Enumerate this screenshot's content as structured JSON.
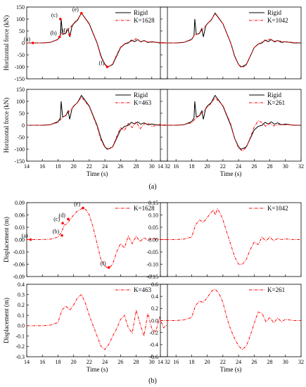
{
  "captions": [
    "(a)",
    "(b)"
  ],
  "chart_data": [
    {
      "type": "line",
      "panel": "a-top-left",
      "xlabel": "",
      "ylabel": "Horizontal force (kN)",
      "xlim": [
        14,
        32
      ],
      "ylim": [
        -150,
        150
      ],
      "xticks": [],
      "yticks": [
        -150,
        -100,
        -50,
        0,
        50,
        100,
        150
      ],
      "legend": "top-right",
      "series": [
        {
          "name": "Rigid",
          "style": "solid",
          "color": "#000000",
          "x": [
            14,
            16,
            17,
            18,
            18.3,
            18.4,
            18.6,
            19,
            19.3,
            19.5,
            19.8,
            20,
            20.5,
            21,
            22,
            23,
            23.5,
            24,
            24.3,
            24.6,
            25,
            25.5,
            26,
            26.5,
            27,
            27.4,
            27.8,
            28.2,
            28.6,
            29,
            29.5,
            30,
            31,
            32
          ],
          "y": [
            0,
            0,
            2,
            15,
            30,
            100,
            35,
            40,
            60,
            25,
            70,
            80,
            95,
            125,
            80,
            0,
            -55,
            -90,
            -100,
            -97,
            -90,
            -55,
            -20,
            -5,
            0,
            12,
            5,
            14,
            4,
            10,
            2,
            5,
            0,
            0
          ]
        },
        {
          "name": "K=1628",
          "style": "dashdot",
          "color": "#ff0000",
          "x": [
            14,
            16,
            17,
            18,
            18.4,
            18.6,
            19,
            19.5,
            20,
            20.5,
            21,
            22,
            23,
            23.5,
            24,
            24.4,
            24.7,
            25,
            25.5,
            26,
            26.5,
            27,
            27.5,
            28,
            28.5,
            29,
            30,
            31,
            32
          ],
          "y": [
            0,
            0,
            2,
            14,
            38,
            36,
            45,
            62,
            82,
            98,
            124,
            78,
            -2,
            -60,
            -88,
            -100,
            -95,
            -88,
            -50,
            -18,
            -4,
            4,
            8,
            18,
            6,
            8,
            3,
            2,
            0
          ]
        }
      ],
      "annotations": [
        {
          "label": "(a)",
          "x": 14.8,
          "y": 0
        },
        {
          "label": "(b)",
          "x": 18.2,
          "y": 25
        },
        {
          "label": "(c)",
          "x": 18.3,
          "y": 100
        },
        {
          "label": "(d)",
          "x": 19.5,
          "y": 35
        },
        {
          "label": "(e)",
          "x": 21,
          "y": 124
        },
        {
          "label": "(f)",
          "x": 24.3,
          "y": -100
        }
      ]
    },
    {
      "type": "line",
      "panel": "a-top-right",
      "xlabel": "",
      "ylabel": "",
      "xlim": [
        14,
        32
      ],
      "ylim": [
        -150,
        150
      ],
      "xticks": [],
      "yticks": [],
      "legend": "top-right",
      "series": [
        {
          "name": "Rigid",
          "style": "solid",
          "color": "#000000",
          "x": [
            14,
            16,
            17,
            18,
            18.3,
            18.4,
            18.6,
            19,
            19.3,
            19.5,
            19.8,
            20,
            20.5,
            21,
            22,
            23,
            23.5,
            24,
            24.3,
            24.6,
            25,
            25.5,
            26,
            26.5,
            27,
            27.4,
            27.8,
            28.2,
            28.6,
            29,
            29.5,
            30,
            31,
            32
          ],
          "y": [
            0,
            0,
            2,
            15,
            30,
            100,
            35,
            40,
            60,
            25,
            70,
            80,
            95,
            125,
            80,
            0,
            -55,
            -90,
            -100,
            -97,
            -90,
            -55,
            -20,
            -5,
            0,
            12,
            5,
            14,
            4,
            10,
            2,
            5,
            0,
            0
          ]
        },
        {
          "name": "K=1042",
          "style": "dashdot",
          "color": "#ff0000",
          "x": [
            14,
            16,
            17,
            18,
            18.4,
            18.6,
            19,
            19.5,
            20,
            20.5,
            21,
            22,
            23,
            23.5,
            24,
            24.5,
            25,
            25.5,
            26,
            26.5,
            27,
            27.5,
            28,
            28.5,
            29,
            30,
            31,
            32
          ],
          "y": [
            0,
            0,
            2,
            13,
            35,
            34,
            43,
            60,
            80,
            97,
            122,
            80,
            0,
            -58,
            -90,
            -102,
            -92,
            -55,
            -20,
            -6,
            5,
            10,
            16,
            7,
            9,
            4,
            2,
            0
          ]
        }
      ]
    },
    {
      "type": "line",
      "panel": "a-bottom-left",
      "xlabel": "Time (s)",
      "ylabel": "Horizontal force (kN)",
      "xlim": [
        14,
        32
      ],
      "ylim": [
        -150,
        150
      ],
      "xticks": [
        14,
        16,
        18,
        20,
        22,
        24,
        26,
        28,
        30,
        32
      ],
      "yticks": [
        -150,
        -100,
        -50,
        0,
        50,
        100,
        150
      ],
      "legend": "top-right",
      "series": [
        {
          "name": "Rigid",
          "style": "solid",
          "color": "#000000",
          "x": [
            14,
            16,
            17,
            18,
            18.3,
            18.4,
            18.6,
            19,
            19.3,
            19.5,
            19.8,
            20,
            20.5,
            21,
            22,
            23,
            23.5,
            24,
            24.3,
            24.6,
            25,
            25.5,
            26,
            26.5,
            27,
            27.4,
            27.8,
            28.2,
            28.6,
            29,
            29.5,
            30,
            31,
            32
          ],
          "y": [
            0,
            0,
            2,
            15,
            30,
            100,
            35,
            40,
            60,
            25,
            70,
            80,
            95,
            125,
            80,
            0,
            -55,
            -90,
            -100,
            -97,
            -90,
            -55,
            -20,
            -5,
            0,
            12,
            5,
            14,
            4,
            10,
            2,
            5,
            0,
            0
          ]
        },
        {
          "name": "K=463",
          "style": "dashdot",
          "color": "#ff0000",
          "x": [
            14,
            16,
            17,
            18,
            18.5,
            19,
            19.5,
            20,
            20.5,
            21,
            22,
            23,
            23.5,
            24,
            24.5,
            25,
            25.5,
            26,
            26.5,
            27,
            27.5,
            28,
            28.5,
            29,
            29.5,
            30,
            31,
            32
          ],
          "y": [
            0,
            0,
            2,
            12,
            30,
            42,
            60,
            78,
            95,
            118,
            78,
            -5,
            -62,
            -92,
            -100,
            -90,
            -48,
            -10,
            -22,
            8,
            -10,
            15,
            -15,
            5,
            10,
            -5,
            3,
            0
          ]
        }
      ]
    },
    {
      "type": "line",
      "panel": "a-bottom-right",
      "xlabel": "Time (s)",
      "ylabel": "",
      "xlim": [
        14,
        32
      ],
      "ylim": [
        -150,
        150
      ],
      "xticks": [
        14,
        16,
        18,
        20,
        22,
        24,
        26,
        28,
        30,
        32
      ],
      "yticks": [],
      "legend": "top-right",
      "series": [
        {
          "name": "Rigid",
          "style": "solid",
          "color": "#000000",
          "x": [
            14,
            16,
            17,
            18,
            18.3,
            18.4,
            18.6,
            19,
            19.3,
            19.5,
            19.8,
            20,
            20.5,
            21,
            22,
            23,
            23.5,
            24,
            24.3,
            24.6,
            25,
            25.5,
            26,
            26.5,
            27,
            27.4,
            27.8,
            28.2,
            28.6,
            29,
            29.5,
            30,
            31,
            32
          ],
          "y": [
            0,
            0,
            2,
            15,
            30,
            100,
            35,
            40,
            60,
            25,
            70,
            80,
            95,
            125,
            80,
            0,
            -55,
            -90,
            -100,
            -97,
            -90,
            -55,
            -20,
            -5,
            0,
            12,
            5,
            14,
            4,
            10,
            2,
            5,
            0,
            0
          ]
        },
        {
          "name": "K=261",
          "style": "dashdot",
          "color": "#ff0000",
          "x": [
            14,
            16,
            17,
            18,
            18.5,
            19,
            19.5,
            20,
            20.5,
            21,
            22,
            23,
            23.5,
            24,
            24.5,
            25,
            25.5,
            26,
            26.5,
            27,
            27.5,
            28,
            28.5,
            29,
            30,
            31,
            32
          ],
          "y": [
            0,
            0,
            2,
            10,
            28,
            40,
            58,
            76,
            92,
            115,
            82,
            5,
            -55,
            -95,
            -108,
            -92,
            -52,
            -8,
            18,
            12,
            -5,
            8,
            -3,
            3,
            2,
            1,
            0
          ]
        }
      ]
    },
    {
      "type": "line",
      "panel": "b-top-left",
      "xlabel": "",
      "ylabel": "Displacement (m)",
      "xlim": [
        14,
        32
      ],
      "ylim": [
        -0.09,
        0.09
      ],
      "xticks": [],
      "yticks": [
        -0.09,
        -0.06,
        -0.03,
        0.0,
        0.03,
        0.06,
        0.09
      ],
      "yticklabels": [
        "-0.09",
        "-0.06",
        "-0.03",
        "0.00",
        "0.03",
        "0.06",
        "0.09"
      ],
      "legend": "top-right",
      "series": [
        {
          "name": "K=1628",
          "style": "dashdot",
          "color": "#ff0000",
          "x": [
            14,
            16,
            17,
            18,
            18.5,
            18.8,
            19.2,
            19.6,
            20,
            20.5,
            21,
            21.3,
            21.6,
            22,
            22.5,
            23,
            23.5,
            24,
            24.5,
            25,
            25.5,
            26,
            26.5,
            27,
            27.5,
            28,
            28.5,
            29,
            29.5,
            30,
            31,
            32
          ],
          "y": [
            0,
            0,
            0.001,
            0.006,
            0.02,
            0.035,
            0.04,
            0.05,
            0.06,
            0.07,
            0.075,
            0.077,
            0.072,
            0.06,
            0.03,
            -0.01,
            -0.05,
            -0.065,
            -0.07,
            -0.06,
            -0.03,
            -0.01,
            -0.02,
            0.008,
            -0.01,
            0.008,
            -0.005,
            0.005,
            -0.002,
            0.003,
            0,
            0
          ]
        }
      ],
      "annotations": [
        {
          "label": "(a)",
          "x": 14.5,
          "y": 0
        },
        {
          "label": "(b)",
          "x": 18.5,
          "y": 0.01
        },
        {
          "label": "(c)",
          "x": 18.6,
          "y": 0.04
        },
        {
          "label": "(d)",
          "x": 19.3,
          "y": 0.05
        },
        {
          "label": "(e)",
          "x": 21.2,
          "y": 0.077
        },
        {
          "label": "(f)",
          "x": 24.5,
          "y": -0.068
        }
      ]
    },
    {
      "type": "line",
      "panel": "b-top-right",
      "xlabel": "",
      "ylabel": "",
      "xlim": [
        14,
        32
      ],
      "ylim": [
        -0.15,
        0.15
      ],
      "xticks": [],
      "yticks": [
        -0.15,
        -0.1,
        -0.05,
        0.0,
        0.05,
        0.1,
        0.15
      ],
      "yticklabels": [
        "-0.15",
        "-0.10",
        "-0.05",
        "0.00",
        "0.05",
        "0.10",
        "0.15"
      ],
      "legend": "top-right",
      "series": [
        {
          "name": "K=1042",
          "style": "dashdot",
          "color": "#ff0000",
          "x": [
            14,
            16,
            17,
            18,
            18.5,
            19,
            19.5,
            20,
            20.5,
            20.8,
            21,
            21.3,
            21.6,
            22,
            22.5,
            23,
            23.5,
            24,
            24.5,
            25,
            25.5,
            26,
            26.5,
            27,
            27.5,
            28,
            28.5,
            29,
            29.5,
            30,
            31,
            32
          ],
          "y": [
            0,
            0,
            0.002,
            0.01,
            0.06,
            0.08,
            0.07,
            0.09,
            0.11,
            0.12,
            0.1,
            0.125,
            0.11,
            0.08,
            0.03,
            -0.02,
            -0.07,
            -0.1,
            -0.1,
            -0.08,
            -0.04,
            -0.01,
            -0.02,
            0.01,
            -0.005,
            0.01,
            -0.005,
            0.005,
            0,
            0.003,
            0,
            0
          ]
        }
      ]
    },
    {
      "type": "line",
      "panel": "b-bottom-left",
      "xlabel": "Time (s)",
      "ylabel": "Displacement (m)",
      "xlim": [
        14,
        32
      ],
      "ylim": [
        -0.3,
        0.4
      ],
      "xticks": [
        14,
        16,
        18,
        20,
        22,
        24,
        26,
        28,
        30,
        32
      ],
      "yticks": [
        -0.3,
        -0.2,
        -0.1,
        0.0,
        0.1,
        0.2,
        0.3,
        0.4
      ],
      "yticklabels": [
        "-0.3",
        "-0.2",
        "-0.1",
        "0.0",
        "0.1",
        "0.2",
        "0.3",
        "0.4"
      ],
      "legend": "top-right",
      "series": [
        {
          "name": "K=463",
          "style": "dashdot",
          "color": "#ff0000",
          "x": [
            14,
            16,
            17,
            18,
            18.5,
            19,
            19.5,
            20,
            20.5,
            21,
            21.5,
            22,
            22.5,
            23,
            23.5,
            24,
            24.5,
            25,
            25.5,
            26,
            26.5,
            27,
            27.5,
            28,
            28.5,
            29,
            29.5,
            30,
            30.5,
            31,
            31.5,
            32
          ],
          "y": [
            0,
            0,
            0.005,
            0.03,
            0.15,
            0.19,
            0.15,
            0.2,
            0.27,
            0.3,
            0.22,
            0.1,
            0.0,
            -0.1,
            -0.2,
            -0.23,
            -0.18,
            -0.1,
            -0.03,
            0.06,
            0.1,
            -0.02,
            -0.07,
            0.15,
            0.02,
            -0.1,
            0.12,
            -0.03,
            -0.06,
            0.08,
            -0.02,
            0.01
          ]
        }
      ]
    },
    {
      "type": "line",
      "panel": "b-bottom-right",
      "xlabel": "Time (s)",
      "ylabel": "",
      "xlim": [
        14,
        32
      ],
      "ylim": [
        -0.6,
        0.6
      ],
      "xticks": [
        14,
        16,
        18,
        20,
        22,
        24,
        26,
        28,
        30,
        32
      ],
      "yticks": [
        -0.6,
        -0.4,
        -0.2,
        0.0,
        0.2,
        0.4,
        0.6
      ],
      "yticklabels": [
        "-0.6",
        "-0.4",
        "-0.2",
        "0.0",
        "0.2",
        "0.4",
        "0.6"
      ],
      "legend": "top-right",
      "series": [
        {
          "name": "K=261",
          "style": "dashdot",
          "color": "#ff0000",
          "x": [
            14,
            16,
            17,
            18,
            18.5,
            19,
            19.5,
            20,
            20.5,
            21,
            21.5,
            22,
            22.5,
            23,
            23.5,
            24,
            24.5,
            25,
            25.5,
            26,
            26.5,
            27,
            27.5,
            28,
            28.5,
            29,
            29.5,
            30,
            31,
            32
          ],
          "y": [
            0,
            0,
            0.01,
            0.05,
            0.25,
            0.32,
            0.3,
            0.38,
            0.48,
            0.52,
            0.45,
            0.3,
            0.05,
            -0.15,
            -0.3,
            -0.42,
            -0.48,
            -0.42,
            -0.25,
            -0.05,
            0.14,
            0.12,
            -0.02,
            0.05,
            -0.04,
            0.04,
            -0.02,
            0.02,
            0,
            0
          ]
        }
      ]
    }
  ]
}
